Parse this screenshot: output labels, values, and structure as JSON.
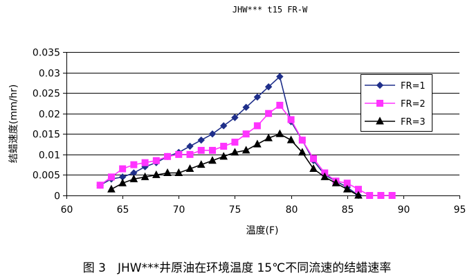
{
  "chart_data": {
    "type": "line",
    "title": "JHW*** t15 FR-W",
    "xlabel": "温度(F)",
    "ylabel": "结蜡速度(mm/hr)",
    "xlim": [
      60,
      95
    ],
    "ylim": [
      0,
      0.035
    ],
    "xticks": [
      "60",
      "65",
      "70",
      "75",
      "80",
      "85",
      "90",
      "95"
    ],
    "yticks": [
      "0",
      "0.005",
      "0.01",
      "0.015",
      "0.02",
      "0.025",
      "0.03",
      "0.035"
    ],
    "grid": "horizontal",
    "legend_position": "right",
    "series": [
      {
        "name": "FR=1",
        "color": "#1f2f8a",
        "marker": "diamond",
        "x": [
          63,
          64,
          65,
          66,
          67,
          68,
          69,
          70,
          71,
          72,
          73,
          74,
          75,
          76,
          77,
          78,
          79,
          80,
          81,
          82,
          83,
          84,
          85,
          86
        ],
        "y": [
          0.0025,
          0.004,
          0.0045,
          0.0055,
          0.007,
          0.008,
          0.0095,
          0.0105,
          0.012,
          0.0135,
          0.015,
          0.017,
          0.019,
          0.0215,
          0.024,
          0.0265,
          0.029,
          0.018,
          0.0135,
          0.0085,
          0.005,
          0.0035,
          0.002,
          0.0
        ]
      },
      {
        "name": "FR=2",
        "color": "#ff33ff",
        "marker": "square",
        "x": [
          63,
          64,
          65,
          66,
          67,
          68,
          69,
          70,
          71,
          72,
          73,
          74,
          75,
          76,
          77,
          78,
          79,
          80,
          81,
          82,
          83,
          84,
          85,
          86,
          87,
          88,
          89
        ],
        "y": [
          0.0025,
          0.0045,
          0.0065,
          0.0075,
          0.008,
          0.0085,
          0.0095,
          0.01,
          0.01,
          0.011,
          0.011,
          0.012,
          0.013,
          0.015,
          0.017,
          0.02,
          0.022,
          0.0185,
          0.0135,
          0.009,
          0.0055,
          0.0035,
          0.003,
          0.0015,
          0.0,
          0.0,
          0.0
        ]
      },
      {
        "name": "FR=3",
        "color": "#000000",
        "marker": "triangle",
        "x": [
          64,
          65,
          66,
          67,
          68,
          69,
          70,
          71,
          72,
          73,
          74,
          75,
          76,
          77,
          78,
          79,
          80,
          81,
          82,
          83,
          84,
          85,
          86
        ],
        "y": [
          0.0015,
          0.003,
          0.004,
          0.0045,
          0.005,
          0.0055,
          0.0055,
          0.0065,
          0.0075,
          0.0085,
          0.0095,
          0.0105,
          0.011,
          0.0125,
          0.014,
          0.015,
          0.0135,
          0.0105,
          0.0065,
          0.0045,
          0.003,
          0.0015,
          0.0
        ]
      }
    ]
  },
  "caption": "图 3　JHW***井原油在环境温度 15℃不同流速的结蜡速率"
}
